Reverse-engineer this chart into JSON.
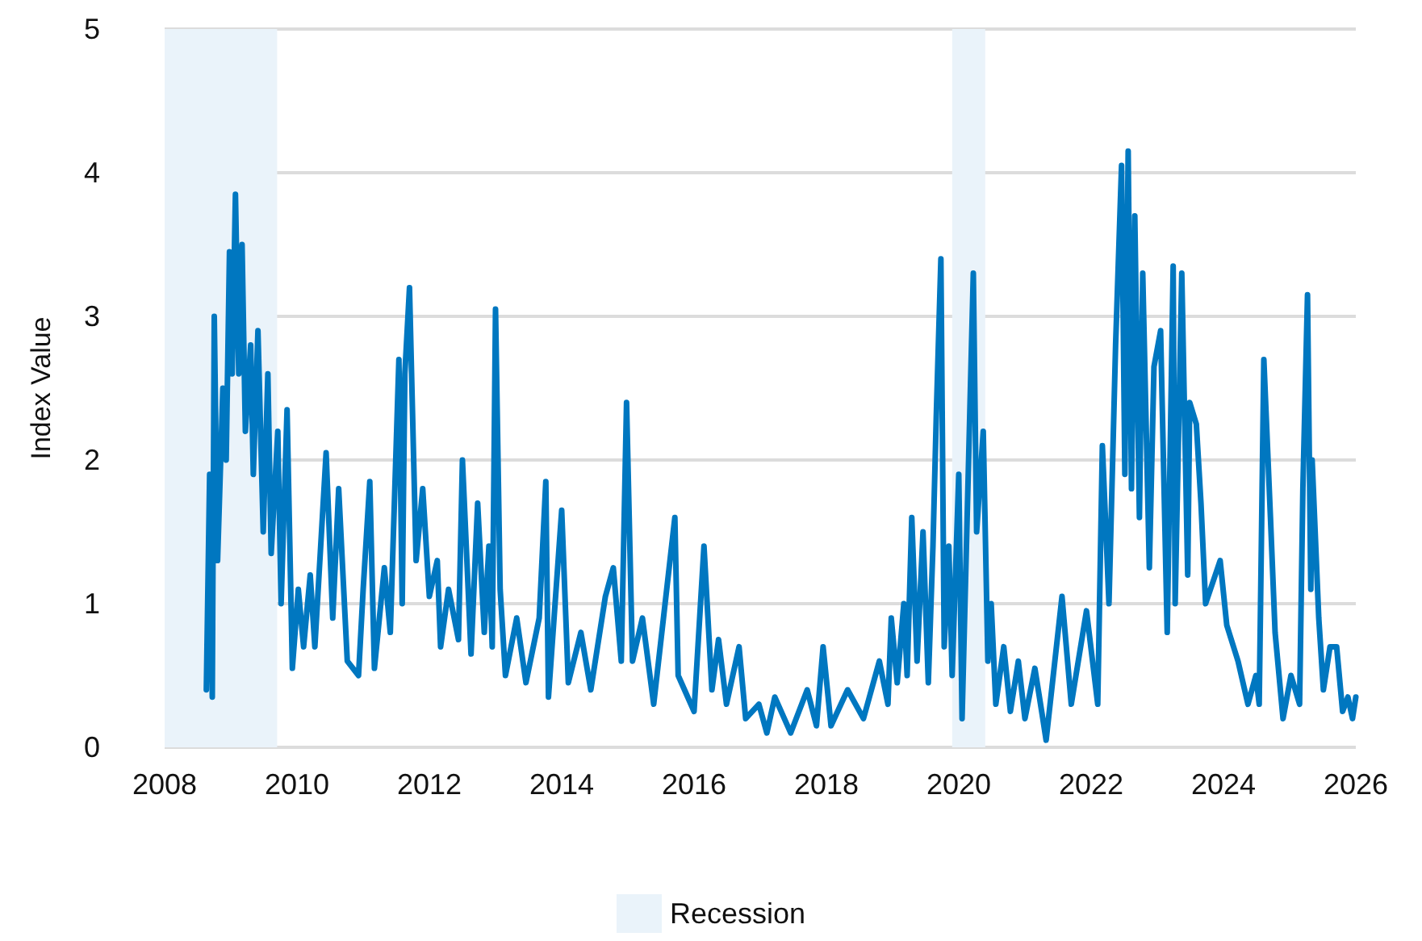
{
  "chart_data": {
    "type": "line",
    "ylabel": "Index Value",
    "xlim": [
      2008,
      2026
    ],
    "xticks": [
      2008,
      2010,
      2012,
      2014,
      2016,
      2018,
      2020,
      2022,
      2024,
      2026
    ],
    "ylim": [
      0,
      5
    ],
    "yticks": [
      0,
      1,
      2,
      3,
      4,
      5
    ],
    "grid": "y",
    "legend": "bottom",
    "marker": "none",
    "line_style": "solid",
    "bands": [
      {
        "axis": "x",
        "from": 2008,
        "to": 2009.7,
        "label": "Recession",
        "color": "#eaf3fa"
      },
      {
        "axis": "x",
        "from": 2019.9,
        "to": 2020.4,
        "color": "#eaf3fa"
      }
    ],
    "series": [
      {
        "color": "#0077c0",
        "x": [
          2008.63,
          2008.68,
          2008.72,
          2008.75,
          2008.8,
          2008.88,
          2008.93,
          2008.98,
          2009.02,
          2009.07,
          2009.12,
          2009.17,
          2009.22,
          2009.3,
          2009.34,
          2009.41,
          2009.49,
          2009.56,
          2009.61,
          2009.71,
          2009.76,
          2009.85,
          2009.93,
          2010.02,
          2010.1,
          2010.2,
          2010.27,
          2010.44,
          2010.54,
          2010.63,
          2010.76,
          2010.93,
          2011.0,
          2011.1,
          2011.17,
          2011.32,
          2011.41,
          2011.54,
          2011.59,
          2011.63,
          2011.7,
          2011.8,
          2011.9,
          2012.0,
          2012.12,
          2012.17,
          2012.29,
          2012.44,
          2012.5,
          2012.63,
          2012.73,
          2012.83,
          2012.9,
          2012.95,
          2013.0,
          2013.07,
          2013.15,
          2013.32,
          2013.46,
          2013.66,
          2013.76,
          2013.8,
          2014.0,
          2014.1,
          2014.29,
          2014.44,
          2014.66,
          2014.78,
          2014.9,
          2014.98,
          2015.07,
          2015.22,
          2015.39,
          2015.71,
          2015.76,
          2016.0,
          2016.15,
          2016.27,
          2016.37,
          2016.49,
          2016.68,
          2016.78,
          2016.98,
          2017.1,
          2017.22,
          2017.46,
          2017.71,
          2017.85,
          2017.95,
          2018.07,
          2018.32,
          2018.56,
          2018.8,
          2018.93,
          2018.98,
          2019.07,
          2019.17,
          2019.22,
          2019.29,
          2019.37,
          2019.46,
          2019.54,
          2019.61,
          2019.66,
          2019.73,
          2019.78,
          2019.85,
          2019.9,
          2020.0,
          2020.05,
          2020.22,
          2020.27,
          2020.37,
          2020.44,
          2020.49,
          2020.56,
          2020.68,
          2020.78,
          2020.9,
          2021.0,
          2021.15,
          2021.27,
          2021.32,
          2021.56,
          2021.7,
          2021.93,
          2022.1,
          2022.17,
          2022.27,
          2022.37,
          2022.46,
          2022.51,
          2022.56,
          2022.61,
          2022.66,
          2022.73,
          2022.78,
          2022.88,
          2022.95,
          2023.05,
          2023.15,
          2023.24,
          2023.27,
          2023.37,
          2023.46,
          2023.49,
          2023.59,
          2023.66,
          2023.73,
          2023.95,
          2024.05,
          2024.22,
          2024.37,
          2024.49,
          2024.54,
          2024.61,
          2024.71,
          2024.78,
          2024.9,
          2025.02,
          2025.15,
          2025.2,
          2025.27,
          2025.32,
          2025.34,
          2025.44,
          2025.51,
          2025.61,
          2025.71,
          2025.8,
          2025.88,
          2025.95,
          2026.0
        ],
        "values": [
          0.4,
          1.9,
          0.35,
          3.0,
          1.3,
          2.5,
          2.0,
          3.45,
          2.6,
          3.85,
          2.6,
          3.5,
          2.2,
          2.8,
          1.9,
          2.9,
          1.5,
          2.6,
          1.35,
          2.2,
          1.0,
          2.35,
          0.55,
          1.1,
          0.7,
          1.2,
          0.7,
          2.05,
          0.9,
          1.8,
          0.6,
          0.5,
          1.1,
          1.85,
          0.55,
          1.25,
          0.8,
          2.7,
          1.0,
          2.6,
          3.2,
          1.3,
          1.8,
          1.05,
          1.3,
          0.7,
          1.1,
          0.75,
          2.0,
          0.65,
          1.7,
          0.8,
          1.4,
          0.7,
          3.05,
          1.1,
          0.5,
          0.9,
          0.45,
          0.9,
          1.85,
          0.35,
          1.65,
          0.45,
          0.8,
          0.4,
          1.05,
          1.25,
          0.6,
          2.4,
          0.6,
          0.9,
          0.3,
          1.6,
          0.5,
          0.25,
          1.4,
          0.4,
          0.75,
          0.3,
          0.7,
          0.2,
          0.3,
          0.1,
          0.35,
          0.1,
          0.4,
          0.15,
          0.7,
          0.15,
          0.4,
          0.2,
          0.6,
          0.3,
          0.9,
          0.45,
          1.0,
          0.5,
          1.6,
          0.6,
          1.5,
          0.45,
          1.4,
          2.3,
          3.4,
          0.7,
          1.4,
          0.5,
          1.9,
          0.2,
          3.3,
          1.5,
          2.2,
          0.6,
          1.0,
          0.3,
          0.7,
          0.25,
          0.6,
          0.2,
          0.55,
          0.2,
          0.05,
          1.05,
          0.3,
          0.95,
          0.3,
          2.1,
          1.0,
          2.8,
          4.05,
          1.9,
          4.15,
          1.8,
          3.7,
          1.6,
          3.3,
          1.25,
          2.65,
          2.9,
          0.8,
          3.35,
          1.0,
          3.3,
          1.2,
          2.4,
          2.25,
          1.7,
          1.0,
          1.3,
          0.85,
          0.6,
          0.3,
          0.5,
          0.3,
          2.7,
          1.6,
          0.8,
          0.2,
          0.5,
          0.3,
          1.8,
          3.15,
          1.1,
          2.0,
          0.9,
          0.4,
          0.7,
          0.7,
          0.25,
          0.35,
          0.2,
          0.35
        ]
      }
    ]
  }
}
